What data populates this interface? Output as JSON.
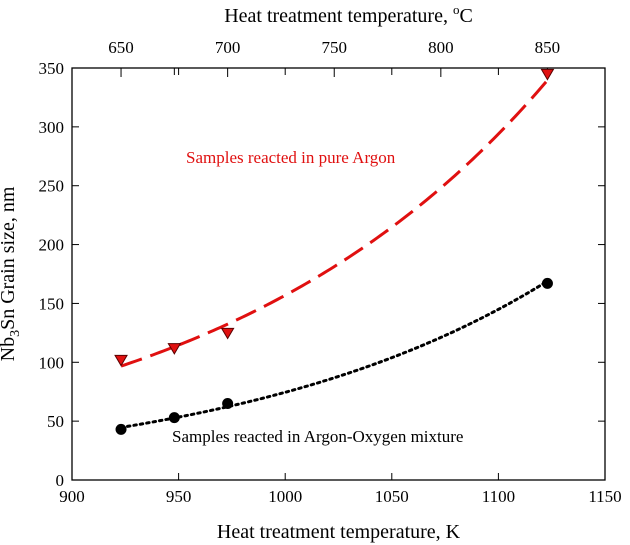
{
  "chart_data": {
    "type": "line",
    "title": "",
    "xlabel": "Heat treatment temperature, K",
    "ylabel": "Nb3Sn Grain size, nm",
    "top_xlabel": "Heat treatment temperature, °C",
    "xlim": [
      900,
      1150
    ],
    "ylim": [
      0,
      350
    ],
    "xticks": [
      900,
      950,
      1000,
      1050,
      1100,
      1150
    ],
    "yticks": [
      0,
      50,
      100,
      150,
      200,
      250,
      300,
      350
    ],
    "top_xticks": [
      650,
      700,
      750,
      800,
      850
    ],
    "top_xticks_extra": [
      675
    ],
    "grid": false,
    "series": [
      {
        "marker": "triangle-down",
        "color": "#e01010",
        "points": [
          {
            "x": 923,
            "y": 102
          },
          {
            "x": 948,
            "y": 112
          },
          {
            "x": 973,
            "y": 125
          },
          {
            "x": 1123,
            "y": 345
          }
        ]
      },
      {
        "marker": "circle",
        "color": "#000000",
        "points": [
          {
            "x": 923,
            "y": 43
          },
          {
            "x": 948,
            "y": 53
          },
          {
            "x": 973,
            "y": 65
          },
          {
            "x": 1123,
            "y": 167
          }
        ]
      }
    ],
    "annotations": [
      {
        "text": "Samples reacted in pure Argon",
        "color": "#e01010",
        "near_x": 1010,
        "near_y": 272
      },
      {
        "text": "Samples reacted in Argon-Oxygen mixture",
        "color": "#000000",
        "near_x": 1050,
        "near_y": 33
      }
    ]
  }
}
